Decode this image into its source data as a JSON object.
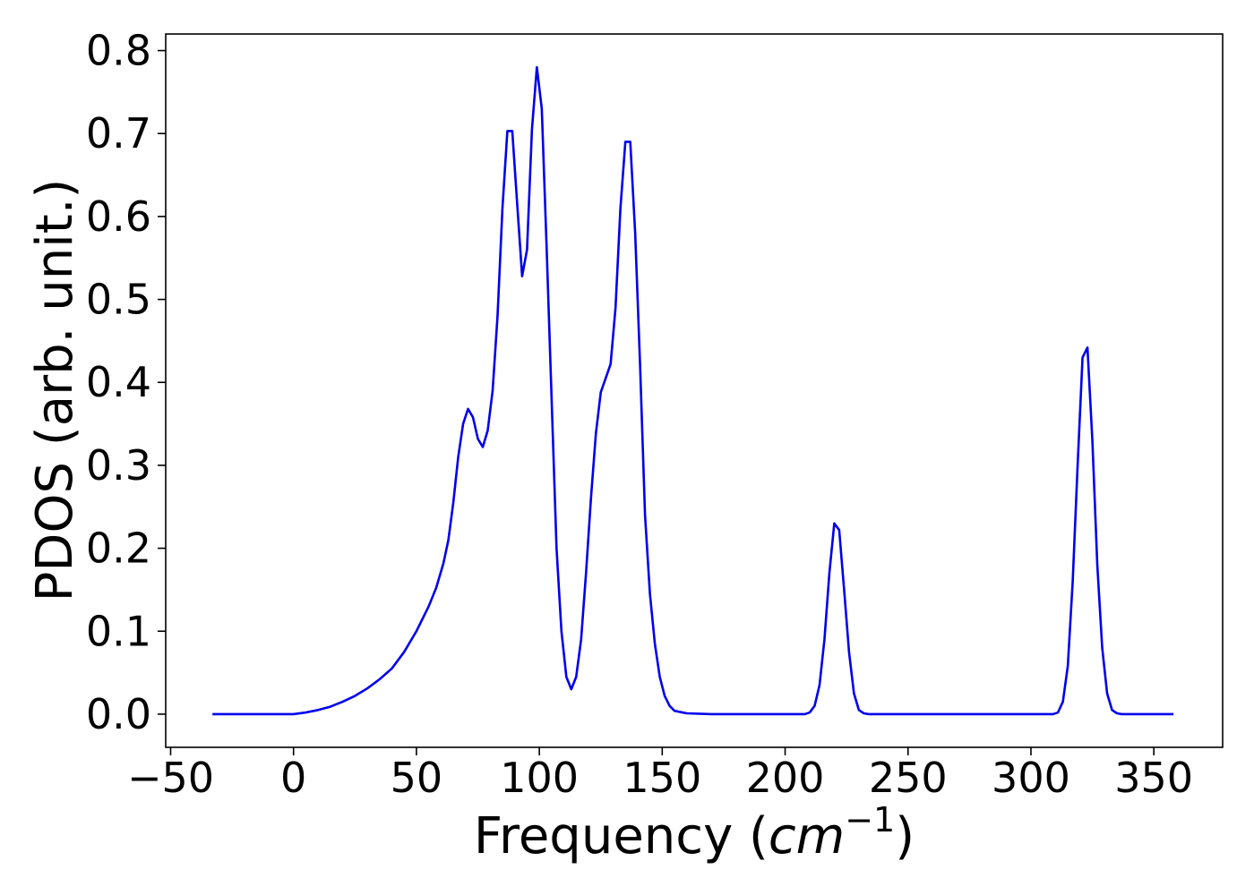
{
  "chart_data": {
    "type": "line",
    "title": "",
    "xlabel": "Frequency (",
    "xlabel_math": "cm",
    "xlabel_sup": "−1",
    "xlabel_close": ")",
    "ylabel": "PDOS (arb. unit.)",
    "xlim": [
      -52,
      378
    ],
    "ylim": [
      -0.04,
      0.82
    ],
    "x_ticks": [
      -50,
      0,
      50,
      100,
      150,
      200,
      250,
      300,
      350
    ],
    "x_tick_labels": [
      "−50",
      "0",
      "50",
      "100",
      "150",
      "200",
      "250",
      "300",
      "350"
    ],
    "y_ticks": [
      0.0,
      0.1,
      0.2,
      0.3,
      0.4,
      0.5,
      0.6,
      0.7,
      0.8
    ],
    "y_tick_labels": [
      "0.0",
      "0.1",
      "0.2",
      "0.3",
      "0.4",
      "0.5",
      "0.6",
      "0.7",
      "0.8"
    ],
    "grid": false,
    "legend": "none",
    "series": [
      {
        "color": "#0000ee",
        "x": [
          -33,
          0,
          5,
          10,
          15,
          20,
          25,
          30,
          35,
          40,
          45,
          50,
          55,
          58,
          61,
          63,
          65,
          67,
          69,
          71,
          73,
          75,
          77,
          79,
          81,
          83,
          85,
          87,
          89,
          91,
          93,
          95,
          97,
          99,
          101,
          103,
          105,
          107,
          109,
          111,
          113,
          115,
          117,
          119,
          121,
          123,
          125,
          127,
          129,
          131,
          133,
          135,
          137,
          139,
          141,
          143,
          145,
          147,
          149,
          151,
          153,
          155,
          160,
          170,
          180,
          190,
          200,
          205,
          208,
          210,
          212,
          214,
          216,
          218,
          220,
          222,
          224,
          226,
          228,
          230,
          232,
          234,
          236,
          240,
          250,
          260,
          270,
          280,
          290,
          300,
          305,
          309,
          311,
          313,
          315,
          317,
          319,
          321,
          323,
          325,
          327,
          329,
          331,
          333,
          335,
          337,
          340,
          350,
          358
        ],
        "y": [
          0.0,
          0.0,
          0.002,
          0.005,
          0.009,
          0.015,
          0.022,
          0.031,
          0.042,
          0.055,
          0.075,
          0.1,
          0.13,
          0.152,
          0.182,
          0.21,
          0.255,
          0.31,
          0.35,
          0.368,
          0.358,
          0.332,
          0.322,
          0.342,
          0.39,
          0.48,
          0.61,
          0.703,
          0.703,
          0.615,
          0.528,
          0.56,
          0.705,
          0.78,
          0.73,
          0.56,
          0.38,
          0.2,
          0.1,
          0.045,
          0.03,
          0.045,
          0.09,
          0.17,
          0.26,
          0.338,
          0.388,
          0.405,
          0.422,
          0.49,
          0.61,
          0.69,
          0.69,
          0.58,
          0.42,
          0.24,
          0.145,
          0.085,
          0.045,
          0.022,
          0.01,
          0.004,
          0.001,
          0.0,
          0.0,
          0.0,
          0.0,
          0.0,
          0.0,
          0.002,
          0.01,
          0.035,
          0.09,
          0.17,
          0.23,
          0.222,
          0.15,
          0.075,
          0.025,
          0.005,
          0.001,
          0.0,
          0.0,
          0.0,
          0.0,
          0.0,
          0.0,
          0.0,
          0.0,
          0.0,
          0.0,
          0.0,
          0.002,
          0.015,
          0.058,
          0.16,
          0.3,
          0.43,
          0.442,
          0.33,
          0.18,
          0.08,
          0.025,
          0.005,
          0.001,
          0.0,
          0.0,
          0.0,
          0.0
        ]
      }
    ]
  }
}
